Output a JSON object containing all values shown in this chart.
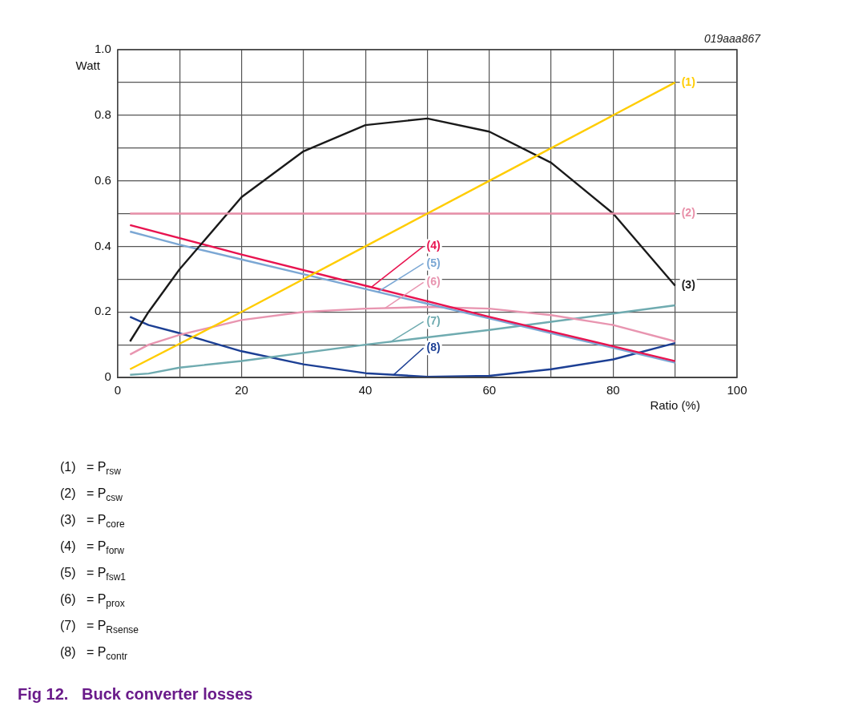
{
  "chart_data": {
    "type": "line",
    "title": "Fig 12.   Buck converter losses",
    "xlabel": "Ratio (%)",
    "ylabel": "Watt",
    "xlim": [
      0,
      100
    ],
    "ylim": [
      0,
      1
    ],
    "xticks": [
      0,
      {
        "value": 10,
        "label": null
      },
      20,
      {
        "value": 30,
        "label": null
      },
      40,
      {
        "value": 50,
        "label": null
      },
      60,
      {
        "value": 70,
        "label": null
      },
      80,
      {
        "value": 90,
        "label": null
      },
      100
    ],
    "yticks": [
      0,
      {
        "value": 0.1,
        "label": null
      },
      0.2,
      {
        "value": 0.3,
        "label": null
      },
      0.4,
      {
        "value": 0.5,
        "label": null
      },
      0.6,
      {
        "value": 0.7,
        "label": null
      },
      0.8,
      {
        "value": 0.9,
        "label": null
      },
      {
        "value": 1,
        "label": "1.0"
      }
    ],
    "grid": true,
    "legend": false,
    "marker": "none",
    "line_style": "solid",
    "series": [
      {
        "name": "(1)",
        "color": "#ffcc00",
        "x": [
          2,
          20,
          40,
          60,
          80,
          90
        ],
        "values": [
          0.025,
          0.2,
          0.4,
          0.6,
          0.8,
          0.9
        ]
      },
      {
        "name": "(2)",
        "color": "#e88fa8",
        "x": [
          2,
          90
        ],
        "values": [
          0.5,
          0.5
        ]
      },
      {
        "name": "(3)",
        "color": "#1a1a1a",
        "x": [
          2,
          5,
          10,
          20,
          30,
          40,
          50,
          60,
          70,
          80,
          90
        ],
        "values": [
          0.11,
          0.2,
          0.33,
          0.55,
          0.69,
          0.77,
          0.79,
          0.75,
          0.655,
          0.5,
          0.28
        ]
      },
      {
        "name": "(4)",
        "color": "#e8134f",
        "x": [
          2,
          20,
          40,
          60,
          80,
          90
        ],
        "values": [
          0.465,
          0.375,
          0.28,
          0.185,
          0.095,
          0.05
        ]
      },
      {
        "name": "(5)",
        "color": "#7ba7d4",
        "x": [
          2,
          5,
          10,
          20,
          30,
          40,
          50,
          60,
          70,
          80,
          90
        ],
        "values": [
          0.445,
          0.43,
          0.405,
          0.36,
          0.315,
          0.27,
          0.225,
          0.18,
          0.135,
          0.09,
          0.045
        ]
      },
      {
        "name": "(6)",
        "color": "#e895b0",
        "x": [
          2,
          5,
          10,
          20,
          30,
          40,
          50,
          60,
          70,
          80,
          90
        ],
        "values": [
          0.07,
          0.1,
          0.13,
          0.175,
          0.2,
          0.21,
          0.215,
          0.21,
          0.19,
          0.16,
          0.11
        ]
      },
      {
        "name": "(7)",
        "color": "#6fabb0",
        "x": [
          2,
          5,
          10,
          20,
          40,
          60,
          80,
          90
        ],
        "values": [
          0.008,
          0.012,
          0.03,
          0.05,
          0.1,
          0.145,
          0.195,
          0.22
        ]
      },
      {
        "name": "(8)",
        "color": "#1c3f94",
        "x": [
          2,
          5,
          10,
          20,
          30,
          40,
          50,
          60,
          70,
          80,
          90
        ],
        "values": [
          0.185,
          0.16,
          0.135,
          0.08,
          0.04,
          0.013,
          0.002,
          0.005,
          0.025,
          0.055,
          0.105
        ]
      }
    ],
    "annotations": [
      "019aaa867",
      "(1)   = P$_{rsw}$",
      "(2)   = P$_{csw}$",
      "(3)   = P$_{core}$",
      "(4)   = P$_{forw}$",
      "(5)   = P$_{fsw1}$",
      "(6)   = P$_{prox}$",
      "(7)   = P$_{Rsense}$",
      "(8)   = P$_{contr}$"
    ]
  }
}
